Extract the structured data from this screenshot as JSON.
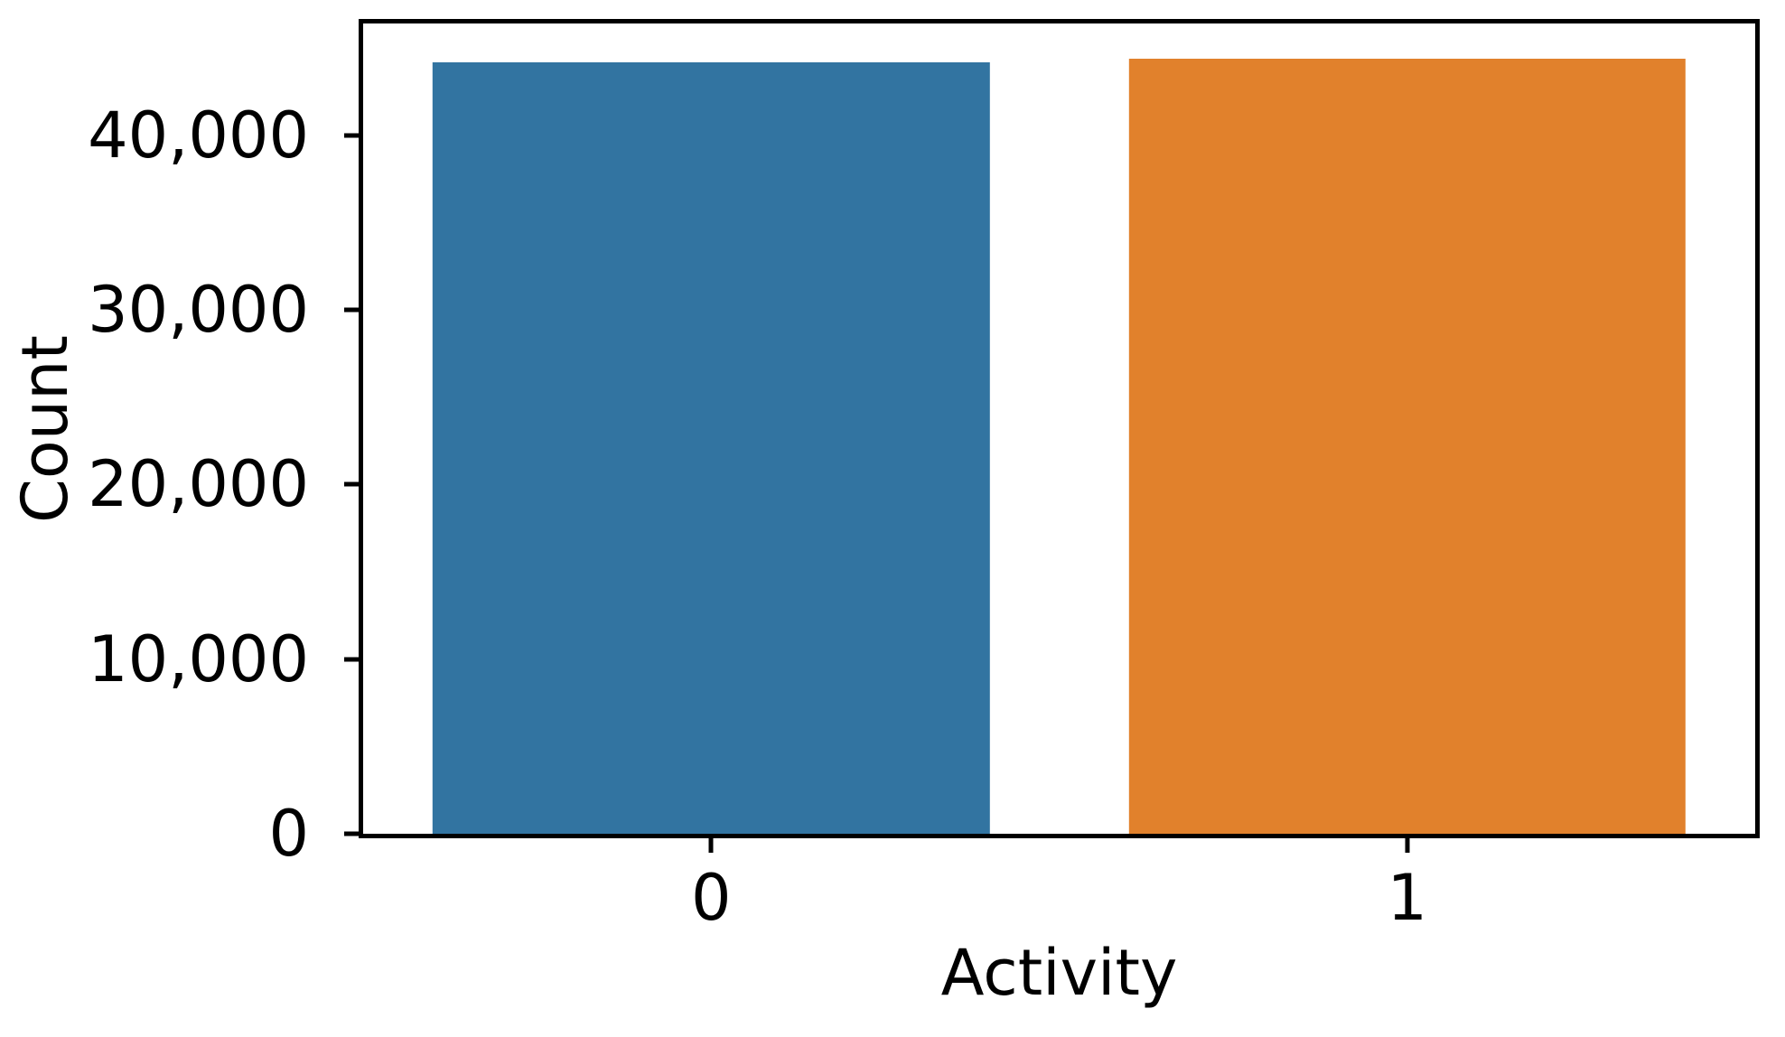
{
  "chart_data": {
    "type": "bar",
    "title": "",
    "xlabel": "Activity",
    "ylabel": "Count",
    "categories": [
      "0",
      "1"
    ],
    "values": [
      44200,
      44400
    ],
    "bar_colors": [
      "#3274a1",
      "#e1812c"
    ],
    "ylim": [
      0,
      46400
    ],
    "xlim": [
      -0.5,
      1.5
    ],
    "bar_width_fraction": 0.4,
    "yticks": [
      {
        "value": 0,
        "label": "0"
      },
      {
        "value": 10000,
        "label": "10,000"
      },
      {
        "value": 20000,
        "label": "20,000"
      },
      {
        "value": 30000,
        "label": "30,000"
      },
      {
        "value": 40000,
        "label": "40,000"
      }
    ],
    "grid": false,
    "legend": null,
    "frame_color": "#000000",
    "background_color": "#ffffff"
  }
}
